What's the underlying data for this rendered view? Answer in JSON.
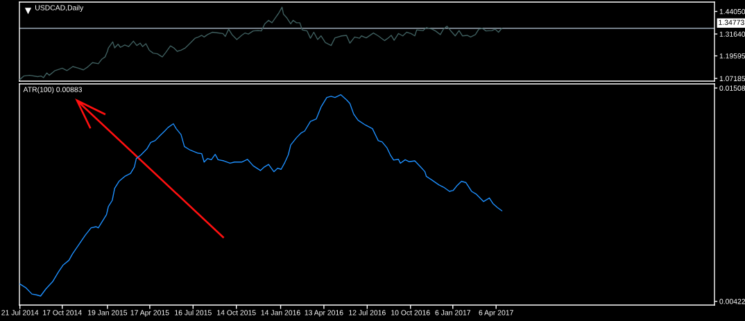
{
  "chart_data": [
    {
      "type": "line",
      "title": "USDCAD,Daily",
      "color": "#3f5f5f",
      "x": [
        "2014-07-21",
        "2014-07-29",
        "2014-08-10",
        "2014-08-27",
        "2014-09-03",
        "2014-09-08",
        "2014-09-15",
        "2014-09-20",
        "2014-10-02",
        "2014-10-17",
        "2014-10-27",
        "2014-11-08",
        "2014-11-20",
        "2014-11-30",
        "2014-12-09",
        "2014-12-19",
        "2014-12-31",
        "2015-01-07",
        "2015-01-14",
        "2015-01-19",
        "2015-01-21",
        "2015-01-30",
        "2015-02-03",
        "2015-02-10",
        "2015-02-15",
        "2015-02-24",
        "2015-03-04",
        "2015-03-14",
        "2015-03-21",
        "2015-03-28",
        "2015-04-02",
        "2015-04-09",
        "2015-04-16",
        "2015-04-24",
        "2015-05-03",
        "2015-05-13",
        "2015-05-20",
        "2015-05-30",
        "2015-06-06",
        "2015-06-13",
        "2015-06-21",
        "2015-06-30",
        "2015-07-10",
        "2015-07-20",
        "2015-07-27",
        "2015-08-03",
        "2015-08-08",
        "2015-08-15",
        "2015-08-25",
        "2015-09-06",
        "2015-09-16",
        "2015-09-21",
        "2015-09-28",
        "2015-10-05",
        "2015-10-15",
        "2015-10-25",
        "2015-11-01",
        "2015-11-08",
        "2015-11-18",
        "2015-11-28",
        "2015-12-05",
        "2015-12-12",
        "2015-12-20",
        "2015-12-27",
        "2016-01-03",
        "2016-01-10",
        "2016-01-17",
        "2016-01-20",
        "2016-01-27",
        "2016-02-04",
        "2016-02-09",
        "2016-02-16",
        "2016-02-23",
        "2016-02-28",
        "2016-03-09",
        "2016-03-16",
        "2016-03-23",
        "2016-03-31",
        "2016-04-07",
        "2016-04-16",
        "2016-04-28",
        "2016-05-06",
        "2016-05-20",
        "2016-05-30",
        "2016-06-06",
        "2016-06-16",
        "2016-06-26",
        "2016-06-30",
        "2016-07-10",
        "2016-07-25",
        "2016-08-04",
        "2016-08-17",
        "2016-08-24",
        "2016-08-31",
        "2016-09-06",
        "2016-09-15",
        "2016-09-24",
        "2016-10-02",
        "2016-10-11",
        "2016-10-19",
        "2016-10-23",
        "2016-11-05",
        "2016-11-12",
        "2016-11-24",
        "2016-12-01",
        "2016-12-11",
        "2016-12-18",
        "2016-12-25",
        "2017-01-02",
        "2017-01-11",
        "2017-01-19",
        "2017-01-26",
        "2017-02-05",
        "2017-02-12",
        "2017-02-22",
        "2017-03-01",
        "2017-03-08",
        "2017-03-16",
        "2017-03-28",
        "2017-04-04",
        "2017-04-11",
        "2017-04-18"
      ],
      "values": [
        1.066,
        1.085,
        1.089,
        1.082,
        1.085,
        1.076,
        1.102,
        1.089,
        1.115,
        1.128,
        1.115,
        1.137,
        1.128,
        1.119,
        1.135,
        1.159,
        1.153,
        1.177,
        1.19,
        1.221,
        1.24,
        1.273,
        1.24,
        1.26,
        1.243,
        1.256,
        1.247,
        1.277,
        1.253,
        1.266,
        1.247,
        1.263,
        1.227,
        1.211,
        1.207,
        1.19,
        1.214,
        1.251,
        1.24,
        1.221,
        1.227,
        1.24,
        1.266,
        1.293,
        1.3,
        1.309,
        1.3,
        1.313,
        1.326,
        1.322,
        1.319,
        1.303,
        1.343,
        1.313,
        1.286,
        1.309,
        1.322,
        1.316,
        1.333,
        1.335,
        1.333,
        1.372,
        1.392,
        1.378,
        1.405,
        1.431,
        1.464,
        1.425,
        1.405,
        1.372,
        1.392,
        1.378,
        1.378,
        1.339,
        1.333,
        1.293,
        1.326,
        1.286,
        1.306,
        1.269,
        1.253,
        1.295,
        1.306,
        1.309,
        1.266,
        1.3,
        1.293,
        1.306,
        1.295,
        1.322,
        1.306,
        1.28,
        1.293,
        1.309,
        1.282,
        1.319,
        1.306,
        1.326,
        1.319,
        1.306,
        1.339,
        1.335,
        1.352,
        1.343,
        1.333,
        1.313,
        1.345,
        1.359,
        1.333,
        1.306,
        1.335,
        1.306,
        1.309,
        1.3,
        1.313,
        1.343,
        1.348,
        1.333,
        1.335,
        1.343,
        1.326,
        1.348
      ],
      "xlim": [
        "2014-07-20",
        "2018-07-04"
      ],
      "ylim": [
        1.057,
        1.492
      ],
      "yticks": [
        {
          "value": 1.4405,
          "label": "1.44050"
        },
        {
          "value": 1.3164,
          "label": "1.31640"
        },
        1.19595,
        1.07185
      ],
      "tick_labels": "y",
      "ref_lines": [
        {
          "axis": "y",
          "value": 1.34773,
          "label": "1.34773",
          "color": "#9aa8b4"
        }
      ]
    },
    {
      "type": "line",
      "title": "ATR(100) 0.00883",
      "color": "#1e90ff",
      "x": [
        "2014-07-21",
        "2014-08-02",
        "2014-08-15",
        "2014-08-24",
        "2014-09-02",
        "2014-09-13",
        "2014-09-27",
        "2014-10-09",
        "2014-10-19",
        "2014-10-31",
        "2014-11-07",
        "2014-11-19",
        "2014-12-04",
        "2014-12-16",
        "2014-12-26",
        "2014-12-31",
        "2015-01-17",
        "2015-01-21",
        "2015-01-29",
        "2015-02-03",
        "2015-02-12",
        "2015-02-24",
        "2015-03-08",
        "2015-03-16",
        "2015-03-20",
        "2015-03-30",
        "2015-04-11",
        "2015-04-19",
        "2015-04-28",
        "2015-05-08",
        "2015-05-18",
        "2015-05-25",
        "2015-06-05",
        "2015-06-11",
        "2015-06-21",
        "2015-06-28",
        "2015-07-10",
        "2015-07-25",
        "2015-08-03",
        "2015-08-08",
        "2015-08-15",
        "2015-08-23",
        "2015-08-31",
        "2015-09-06",
        "2015-09-18",
        "2015-10-01",
        "2015-10-10",
        "2015-10-25",
        "2015-11-06",
        "2015-11-18",
        "2015-12-03",
        "2015-12-10",
        "2015-12-20",
        "2015-12-31",
        "2016-01-08",
        "2016-01-15",
        "2016-01-22",
        "2016-01-30",
        "2016-02-04",
        "2016-02-16",
        "2016-02-26",
        "2016-03-04",
        "2016-03-16",
        "2016-03-28",
        "2016-04-07",
        "2016-04-19",
        "2016-04-28",
        "2016-05-06",
        "2016-05-18",
        "2016-05-30",
        "2016-06-06",
        "2016-06-14",
        "2016-06-23",
        "2016-07-08",
        "2016-07-23",
        "2016-07-30",
        "2016-08-04",
        "2016-08-12",
        "2016-08-22",
        "2016-08-29",
        "2016-09-05",
        "2016-09-15",
        "2016-09-19",
        "2016-09-29",
        "2016-10-07",
        "2016-10-19",
        "2016-10-31",
        "2016-11-09",
        "2016-11-12",
        "2016-11-24",
        "2016-12-08",
        "2016-12-18",
        "2016-12-30",
        "2017-01-07",
        "2017-01-14",
        "2017-01-24",
        "2017-02-02",
        "2017-02-07",
        "2017-02-14",
        "2017-02-24",
        "2017-03-11",
        "2017-03-23",
        "2017-03-31",
        "2017-04-09",
        "2017-04-18"
      ],
      "values": [
        0.0051,
        0.00492,
        0.00459,
        0.00455,
        0.00449,
        0.00485,
        0.00522,
        0.00571,
        0.00607,
        0.00631,
        0.00662,
        0.00705,
        0.00759,
        0.00796,
        0.00802,
        0.00796,
        0.00863,
        0.00905,
        0.00936,
        0.00997,
        0.01033,
        0.01058,
        0.01073,
        0.01106,
        0.01149,
        0.01168,
        0.01198,
        0.01231,
        0.0124,
        0.01265,
        0.01289,
        0.01307,
        0.01326,
        0.01301,
        0.01271,
        0.0121,
        0.01192,
        0.01177,
        0.01174,
        0.01131,
        0.01149,
        0.01143,
        0.0117,
        0.01143,
        0.01137,
        0.01125,
        0.01131,
        0.01131,
        0.01145,
        0.01112,
        0.01088,
        0.01104,
        0.01119,
        0.01082,
        0.011,
        0.01094,
        0.01125,
        0.01168,
        0.01218,
        0.01255,
        0.0128,
        0.01289,
        0.01338,
        0.0135,
        0.01411,
        0.0146,
        0.01466,
        0.0146,
        0.01474,
        0.01448,
        0.01429,
        0.01375,
        0.01344,
        0.0132,
        0.01301,
        0.01265,
        0.0124,
        0.01234,
        0.01204,
        0.01168,
        0.01141,
        0.01145,
        0.01125,
        0.01143,
        0.01133,
        0.01137,
        0.01106,
        0.01082,
        0.01058,
        0.01039,
        0.01015,
        0.01003,
        0.00982,
        0.00987,
        0.01009,
        0.01033,
        0.01027,
        0.01009,
        0.00982,
        0.00967,
        0.0093,
        0.00948,
        0.00918,
        0.00899,
        0.00883
      ],
      "xlim": [
        "2014-07-20",
        "2018-07-04"
      ],
      "ylim": [
        0.00403,
        0.01529
      ],
      "yticks": [
        0.01508,
        0.00422
      ],
      "xticks": [
        {
          "value": "2014-07-21",
          "label": "21 Jul 2014"
        },
        {
          "value": "2014-10-17",
          "label": "17 Oct 2014"
        },
        {
          "value": "2015-01-19",
          "label": "19 Jan 2015"
        },
        {
          "value": "2015-04-17",
          "label": "17 Apr 2015"
        },
        {
          "value": "2015-07-16",
          "label": "16 Jul 2015"
        },
        {
          "value": "2015-10-14",
          "label": "14 Oct 2015"
        },
        {
          "value": "2016-01-14",
          "label": "14 Jan 2016"
        },
        {
          "value": "2016-04-13",
          "label": "13 Apr 2016"
        },
        {
          "value": "2016-07-12",
          "label": "12 Jul 2016"
        },
        {
          "value": "2016-10-10",
          "label": "10 Oct 2016"
        },
        {
          "value": "2017-01-06",
          "label": "6 Jan 2017"
        },
        {
          "value": "2017-04-06",
          "label": "6 Apr 2017"
        }
      ]
    }
  ]
}
